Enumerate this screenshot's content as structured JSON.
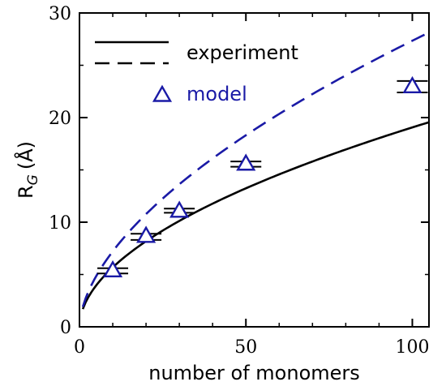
{
  "chart_data": {
    "type": "line",
    "xlabel": "number of monomers",
    "ylabel_main": "R",
    "ylabel_sub": "G",
    "ylabel_unit": "(Å)",
    "xlim": [
      0,
      105
    ],
    "ylim": [
      0,
      30
    ],
    "x_ticks": [
      "0",
      "50",
      "100"
    ],
    "y_ticks": [
      "0",
      "10",
      "20",
      "30"
    ],
    "legend_position": "top-left",
    "colors": {
      "experiment": "#000000",
      "model": "#1a1aa6"
    },
    "series": [
      {
        "name": "experiment",
        "kind": "solid-line",
        "x": [
          1,
          2,
          5,
          10,
          20,
          30,
          40,
          50,
          60,
          70,
          80,
          90,
          100,
          105
        ],
        "y": [
          1.7,
          2.6,
          3.95,
          5.4,
          7.9,
          9.8,
          11.4,
          12.9,
          14.2,
          15.7,
          17.1,
          18.4,
          19.9,
          20.9
        ]
      },
      {
        "name": "experiment",
        "kind": "dashed-line",
        "x": [
          1,
          2,
          5,
          10,
          20,
          30,
          40,
          50,
          60,
          70,
          80,
          90,
          100,
          105
        ],
        "y": [
          1.9,
          3.0,
          4.9,
          6.9,
          10.4,
          13.1,
          15.6,
          17.9,
          20.2,
          22.4,
          24.6,
          26.6,
          28.0,
          28.9
        ]
      },
      {
        "name": "model",
        "kind": "triangle-marker",
        "x": [
          10,
          20,
          30,
          50,
          100
        ],
        "y": [
          5.4,
          8.7,
          11.1,
          15.6,
          23.0
        ]
      }
    ],
    "error_bars": [
      {
        "x": 10,
        "y_low": 5.1,
        "y_high": 5.6
      },
      {
        "x": 20,
        "y_low": 8.3,
        "y_high": 8.9
      },
      {
        "x": 30,
        "y_low": 10.9,
        "y_high": 11.3
      },
      {
        "x": 50,
        "y_low": 15.3,
        "y_high": 15.8
      },
      {
        "x": 100,
        "y_low": 22.4,
        "y_high": 23.5
      }
    ],
    "legend": {
      "entries": [
        {
          "label": "experiment",
          "symbols": [
            "solid-line",
            "dashed-line"
          ]
        },
        {
          "label": "model",
          "symbols": [
            "triangle-marker"
          ]
        }
      ]
    }
  }
}
